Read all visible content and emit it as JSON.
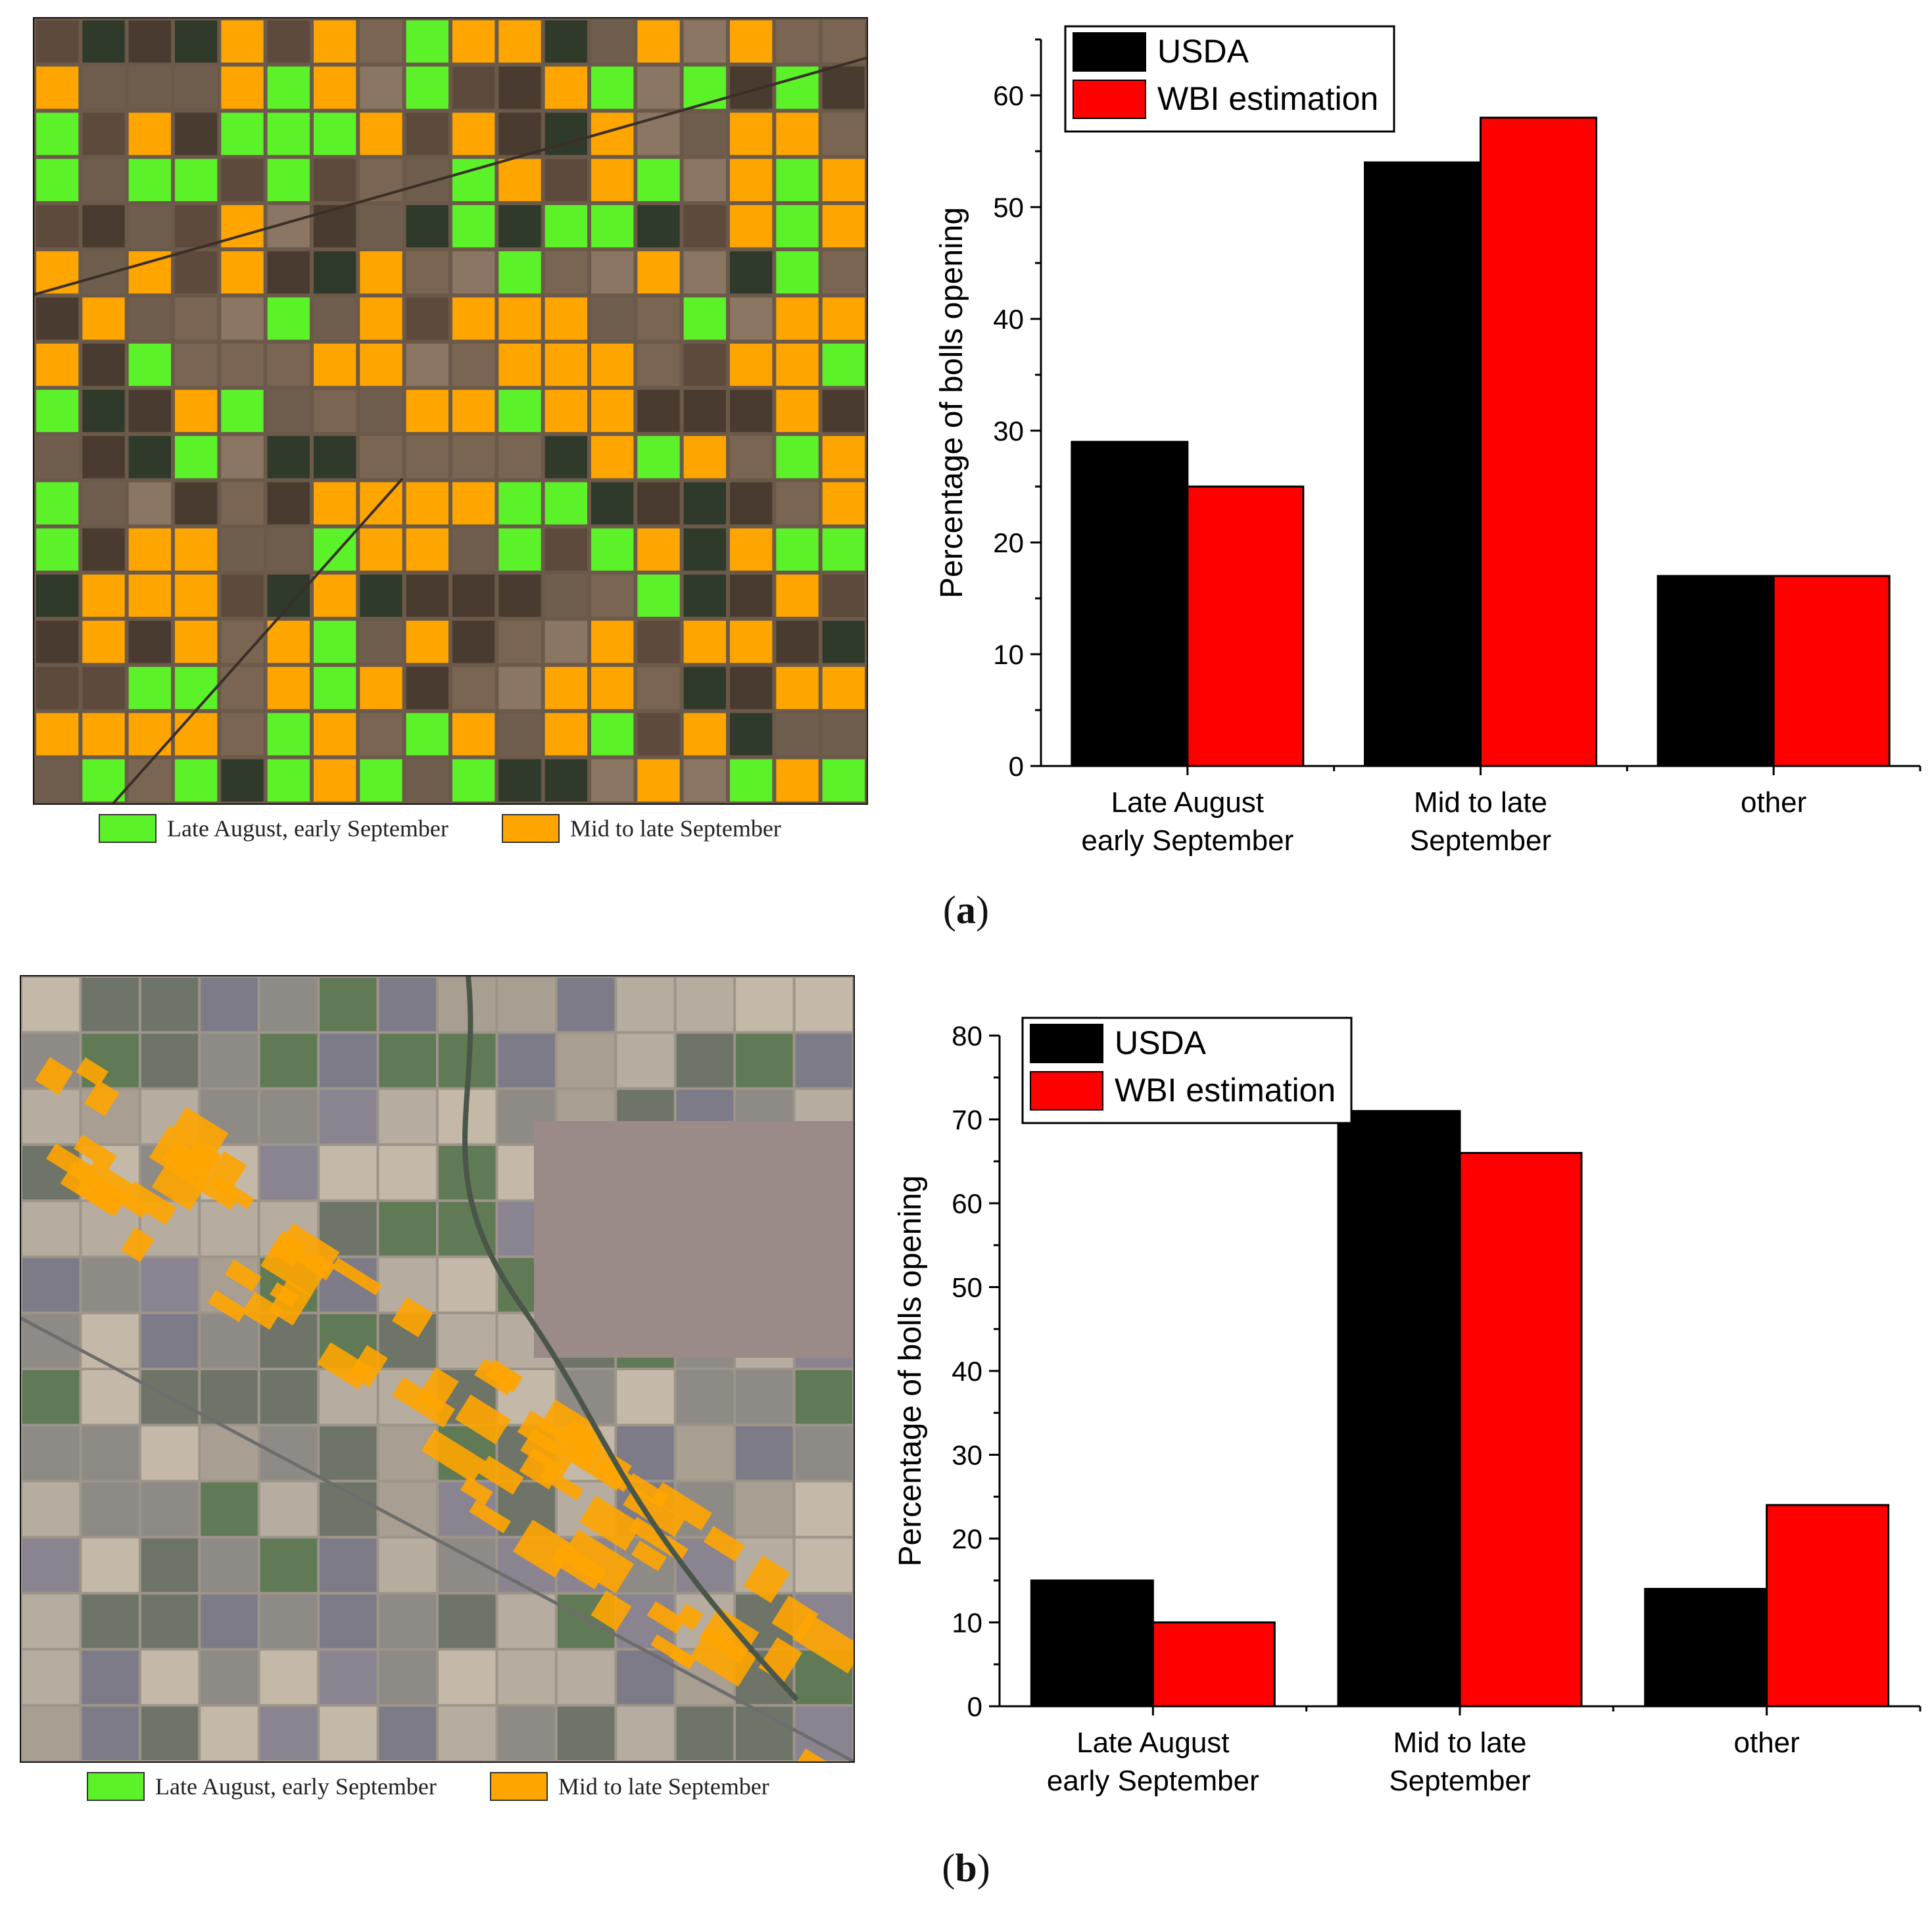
{
  "colors": {
    "usda": "#000000",
    "wbi": "#ff0000",
    "early_class": "#5cf22a",
    "late_class": "#ffa500"
  },
  "panels": [
    {
      "id": "a",
      "label_open": "(",
      "label_letter": "a",
      "label_close": ")",
      "map_legend": [
        {
          "label": "Late August, early September",
          "color": "#5cf22a"
        },
        {
          "label": "Mid to late September",
          "color": "#ffa500"
        }
      ]
    },
    {
      "id": "b",
      "label_open": "(",
      "label_letter": "b",
      "label_close": ")",
      "map_legend": [
        {
          "label": "Late August, early September",
          "color": "#5cf22a"
        },
        {
          "label": "Mid to late September",
          "color": "#ffa500"
        }
      ]
    }
  ],
  "chart_data": [
    {
      "type": "bar",
      "title": "",
      "xlabel": "",
      "ylabel": "Percentage of bolls opening",
      "categories": [
        [
          "Late August",
          "early September"
        ],
        [
          "Mid to late",
          "September"
        ],
        [
          "other"
        ]
      ],
      "series": [
        {
          "name": "USDA",
          "color": "#000000",
          "values": [
            29,
            54,
            17
          ]
        },
        {
          "name": "WBI estimation",
          "color": "#ff0000",
          "values": [
            25,
            58,
            17
          ]
        }
      ],
      "ylim": [
        0,
        65
      ],
      "yticks": [
        0,
        10,
        20,
        30,
        40,
        50,
        60
      ],
      "legend_position": "top-left",
      "grid": false
    },
    {
      "type": "bar",
      "title": "",
      "xlabel": "",
      "ylabel": "Percentage of bolls opening",
      "categories": [
        [
          "Late August",
          "early September"
        ],
        [
          "Mid to late",
          "September"
        ],
        [
          "other"
        ]
      ],
      "series": [
        {
          "name": "USDA",
          "color": "#000000",
          "values": [
            15,
            71,
            14
          ]
        },
        {
          "name": "WBI estimation",
          "color": "#ff0000",
          "values": [
            10,
            66,
            24
          ]
        }
      ],
      "ylim": [
        0,
        80
      ],
      "yticks": [
        0,
        10,
        20,
        30,
        40,
        50,
        60,
        70,
        80
      ],
      "legend_position": "top-left",
      "grid": false
    }
  ]
}
